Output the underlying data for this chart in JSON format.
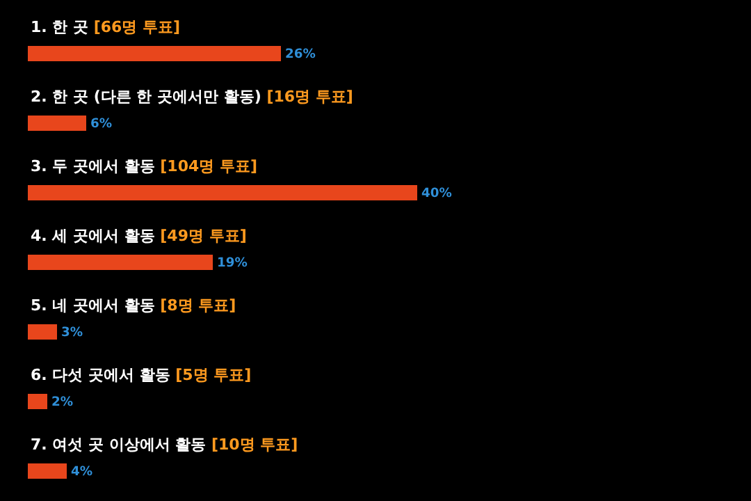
{
  "chart_data": {
    "type": "bar",
    "orientation": "horizontal",
    "categories": [
      "1. 한 곳 [66명 투표]",
      "2. 한 곳 (다른 한 곳에서만 활동) [16명 투표]",
      "3. 두 곳에서 활동 [104명 투표]",
      "4. 세 곳에서 활동 [49명 투표]",
      "5. 네 곳에서 활동 [8명 투표]",
      "6. 다섯 곳에서 활동 [5명 투표]",
      "7. 여섯 곳 이상에서 활동 [10명 투표]"
    ],
    "values": [
      26,
      6,
      40,
      19,
      3,
      2,
      4
    ],
    "value_labels": [
      "26%",
      "6%",
      "40%",
      "19%",
      "3%",
      "2%",
      "4%"
    ],
    "color": "#e8461c",
    "legend": false
  }
}
